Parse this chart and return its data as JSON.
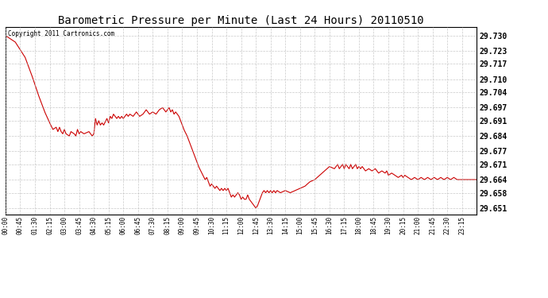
{
  "title": "Barometric Pressure per Minute (Last 24 Hours) 20110510",
  "copyright": "Copyright 2011 Cartronics.com",
  "line_color": "#cc0000",
  "background_color": "#ffffff",
  "grid_color": "#bbbbbb",
  "yticks": [
    29.73,
    29.723,
    29.717,
    29.71,
    29.704,
    29.697,
    29.691,
    29.684,
    29.677,
    29.671,
    29.664,
    29.658,
    29.651
  ],
  "ylim": [
    29.648,
    29.734
  ],
  "xtick_labels": [
    "00:00",
    "00:45",
    "01:30",
    "02:15",
    "03:00",
    "03:45",
    "04:30",
    "05:15",
    "06:00",
    "06:45",
    "07:30",
    "08:15",
    "09:00",
    "09:45",
    "10:30",
    "11:15",
    "12:00",
    "12:45",
    "13:30",
    "14:15",
    "15:00",
    "15:45",
    "16:30",
    "17:15",
    "18:00",
    "18:45",
    "19:30",
    "20:15",
    "21:00",
    "21:45",
    "22:30",
    "23:15"
  ],
  "x_values": [
    0,
    45,
    90,
    135,
    180,
    225,
    270,
    315,
    360,
    405,
    450,
    495,
    540,
    585,
    630,
    675,
    720,
    765,
    810,
    855,
    900,
    945,
    990,
    1035,
    1080,
    1125,
    1170,
    1215,
    1260,
    1305,
    1350,
    1395
  ],
  "key_points": [
    [
      0,
      29.73
    ],
    [
      10,
      29.729
    ],
    [
      30,
      29.727
    ],
    [
      60,
      29.72
    ],
    [
      80,
      29.712
    ],
    [
      100,
      29.703
    ],
    [
      120,
      29.695
    ],
    [
      135,
      29.69
    ],
    [
      145,
      29.687
    ],
    [
      155,
      29.688
    ],
    [
      160,
      29.686
    ],
    [
      165,
      29.688
    ],
    [
      170,
      29.686
    ],
    [
      175,
      29.685
    ],
    [
      180,
      29.687
    ],
    [
      185,
      29.685
    ],
    [
      195,
      29.684
    ],
    [
      200,
      29.686
    ],
    [
      210,
      29.685
    ],
    [
      215,
      29.684
    ],
    [
      220,
      29.687
    ],
    [
      225,
      29.685
    ],
    [
      230,
      29.686
    ],
    [
      240,
      29.685
    ],
    [
      255,
      29.686
    ],
    [
      265,
      29.684
    ],
    [
      270,
      29.685
    ],
    [
      275,
      29.692
    ],
    [
      280,
      29.689
    ],
    [
      285,
      29.691
    ],
    [
      290,
      29.689
    ],
    [
      295,
      29.69
    ],
    [
      300,
      29.689
    ],
    [
      310,
      29.692
    ],
    [
      315,
      29.69
    ],
    [
      320,
      29.693
    ],
    [
      325,
      29.692
    ],
    [
      330,
      29.694
    ],
    [
      340,
      29.692
    ],
    [
      345,
      29.693
    ],
    [
      350,
      29.692
    ],
    [
      355,
      29.693
    ],
    [
      360,
      29.692
    ],
    [
      370,
      29.694
    ],
    [
      375,
      29.693
    ],
    [
      380,
      29.694
    ],
    [
      390,
      29.693
    ],
    [
      400,
      29.695
    ],
    [
      410,
      29.693
    ],
    [
      420,
      29.694
    ],
    [
      430,
      29.696
    ],
    [
      440,
      29.694
    ],
    [
      450,
      29.695
    ],
    [
      460,
      29.694
    ],
    [
      470,
      29.696
    ],
    [
      480,
      29.697
    ],
    [
      490,
      29.695
    ],
    [
      500,
      29.697
    ],
    [
      505,
      29.695
    ],
    [
      510,
      29.696
    ],
    [
      515,
      29.694
    ],
    [
      520,
      29.695
    ],
    [
      530,
      29.693
    ],
    [
      535,
      29.691
    ],
    [
      540,
      29.689
    ],
    [
      545,
      29.687
    ],
    [
      555,
      29.684
    ],
    [
      560,
      29.682
    ],
    [
      565,
      29.68
    ],
    [
      570,
      29.678
    ],
    [
      575,
      29.676
    ],
    [
      580,
      29.674
    ],
    [
      585,
      29.672
    ],
    [
      590,
      29.67
    ],
    [
      600,
      29.667
    ],
    [
      610,
      29.664
    ],
    [
      615,
      29.665
    ],
    [
      620,
      29.663
    ],
    [
      625,
      29.661
    ],
    [
      630,
      29.662
    ],
    [
      635,
      29.661
    ],
    [
      640,
      29.66
    ],
    [
      645,
      29.661
    ],
    [
      650,
      29.66
    ],
    [
      655,
      29.659
    ],
    [
      660,
      29.66
    ],
    [
      665,
      29.659
    ],
    [
      670,
      29.66
    ],
    [
      675,
      29.659
    ],
    [
      680,
      29.66
    ],
    [
      685,
      29.658
    ],
    [
      690,
      29.656
    ],
    [
      695,
      29.657
    ],
    [
      700,
      29.656
    ],
    [
      705,
      29.657
    ],
    [
      710,
      29.658
    ],
    [
      715,
      29.657
    ],
    [
      720,
      29.655
    ],
    [
      725,
      29.656
    ],
    [
      730,
      29.655
    ],
    [
      735,
      29.655
    ],
    [
      740,
      29.657
    ],
    [
      745,
      29.655
    ],
    [
      750,
      29.654
    ],
    [
      755,
      29.653
    ],
    [
      760,
      29.652
    ],
    [
      765,
      29.651
    ],
    [
      770,
      29.652
    ],
    [
      775,
      29.654
    ],
    [
      780,
      29.656
    ],
    [
      785,
      29.658
    ],
    [
      790,
      29.659
    ],
    [
      795,
      29.658
    ],
    [
      800,
      29.659
    ],
    [
      805,
      29.658
    ],
    [
      810,
      29.659
    ],
    [
      815,
      29.658
    ],
    [
      820,
      29.659
    ],
    [
      825,
      29.658
    ],
    [
      830,
      29.659
    ],
    [
      840,
      29.658
    ],
    [
      855,
      29.659
    ],
    [
      870,
      29.658
    ],
    [
      885,
      29.659
    ],
    [
      900,
      29.66
    ],
    [
      915,
      29.661
    ],
    [
      930,
      29.663
    ],
    [
      945,
      29.664
    ],
    [
      960,
      29.666
    ],
    [
      975,
      29.668
    ],
    [
      990,
      29.67
    ],
    [
      1005,
      29.669
    ],
    [
      1015,
      29.671
    ],
    [
      1020,
      29.669
    ],
    [
      1030,
      29.671
    ],
    [
      1035,
      29.669
    ],
    [
      1040,
      29.671
    ],
    [
      1050,
      29.669
    ],
    [
      1055,
      29.671
    ],
    [
      1060,
      29.669
    ],
    [
      1070,
      29.671
    ],
    [
      1075,
      29.669
    ],
    [
      1080,
      29.67
    ],
    [
      1085,
      29.669
    ],
    [
      1090,
      29.67
    ],
    [
      1100,
      29.668
    ],
    [
      1110,
      29.669
    ],
    [
      1120,
      29.668
    ],
    [
      1130,
      29.669
    ],
    [
      1140,
      29.667
    ],
    [
      1150,
      29.668
    ],
    [
      1160,
      29.667
    ],
    [
      1165,
      29.668
    ],
    [
      1170,
      29.666
    ],
    [
      1180,
      29.667
    ],
    [
      1190,
      29.666
    ],
    [
      1200,
      29.665
    ],
    [
      1210,
      29.666
    ],
    [
      1215,
      29.665
    ],
    [
      1220,
      29.666
    ],
    [
      1230,
      29.665
    ],
    [
      1240,
      29.664
    ],
    [
      1250,
      29.665
    ],
    [
      1260,
      29.664
    ],
    [
      1270,
      29.665
    ],
    [
      1280,
      29.664
    ],
    [
      1290,
      29.665
    ],
    [
      1300,
      29.664
    ],
    [
      1310,
      29.665
    ],
    [
      1320,
      29.664
    ],
    [
      1330,
      29.665
    ],
    [
      1340,
      29.664
    ],
    [
      1350,
      29.665
    ],
    [
      1360,
      29.664
    ],
    [
      1370,
      29.665
    ],
    [
      1380,
      29.664
    ],
    [
      1395,
      29.664
    ],
    [
      1440,
      29.664
    ]
  ]
}
